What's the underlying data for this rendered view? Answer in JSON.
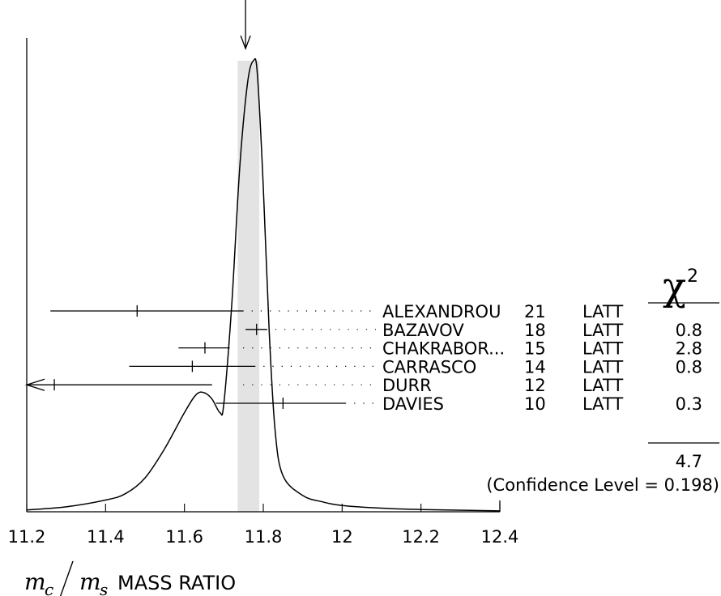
{
  "chart_data": {
    "type": "ideogram",
    "title": "",
    "xlim": [
      11.2,
      12.4
    ],
    "xticks": [
      11.2,
      11.4,
      11.6,
      11.8,
      12.0,
      12.2,
      12.4
    ],
    "xtick_labels": [
      "11.2",
      "11.4",
      "11.6",
      "11.8",
      "12",
      "12.2",
      "12.4"
    ],
    "xlabel": {
      "m": "m",
      "c": "c",
      "s": "s",
      "text": "MASS RATIO"
    },
    "average_band": [
      11.735,
      11.79
    ],
    "average_marker_x": 11.755,
    "chi2_header": "χ",
    "chi2_header_sup": "2",
    "measurements": [
      {
        "author": "ALEXANDROU",
        "year": "21",
        "tech": "LATT",
        "value": 11.48,
        "low": 11.26,
        "high": 11.75,
        "chi2": ""
      },
      {
        "author": "BAZAVOV",
        "year": "18",
        "tech": "LATT",
        "value": 11.783,
        "low": 11.755,
        "high": 11.81,
        "chi2": "0.8"
      },
      {
        "author": "CHAKRABOR...",
        "year": "15",
        "tech": "LATT",
        "value": 11.652,
        "low": 11.585,
        "high": 11.715,
        "chi2": "2.8"
      },
      {
        "author": "CARRASCO",
        "year": "14",
        "tech": "LATT",
        "value": 11.62,
        "low": 11.46,
        "high": 11.78,
        "chi2": "0.8"
      },
      {
        "author": "DURR",
        "year": "12",
        "tech": "LATT",
        "value": 11.27,
        "low": 11.2,
        "high": 11.67,
        "chi2": "",
        "arrow_left": true
      },
      {
        "author": "DAVIES",
        "year": "10",
        "tech": "LATT",
        "value": 11.85,
        "low": 11.68,
        "high": 12.01,
        "chi2": "0.3"
      }
    ],
    "chi2_total": "4.7",
    "confidence_level": "(Confidence Level = 0.198)",
    "ideogram_curve": [
      [
        11.2,
        0.004
      ],
      [
        11.3,
        0.011
      ],
      [
        11.4,
        0.026
      ],
      [
        11.45,
        0.04
      ],
      [
        11.5,
        0.075
      ],
      [
        11.55,
        0.14
      ],
      [
        11.6,
        0.22
      ],
      [
        11.63,
        0.26
      ],
      [
        11.65,
        0.264
      ],
      [
        11.67,
        0.25
      ],
      [
        11.69,
        0.22
      ],
      [
        11.7,
        0.24
      ],
      [
        11.72,
        0.46
      ],
      [
        11.74,
        0.76
      ],
      [
        11.76,
        0.95
      ],
      [
        11.775,
        1.0
      ],
      [
        11.785,
        0.97
      ],
      [
        11.8,
        0.72
      ],
      [
        11.815,
        0.4
      ],
      [
        11.83,
        0.18
      ],
      [
        11.85,
        0.08
      ],
      [
        11.9,
        0.036
      ],
      [
        11.95,
        0.022
      ],
      [
        12.0,
        0.014
      ],
      [
        12.1,
        0.008
      ],
      [
        12.2,
        0.005
      ],
      [
        12.4,
        0.002
      ]
    ]
  }
}
